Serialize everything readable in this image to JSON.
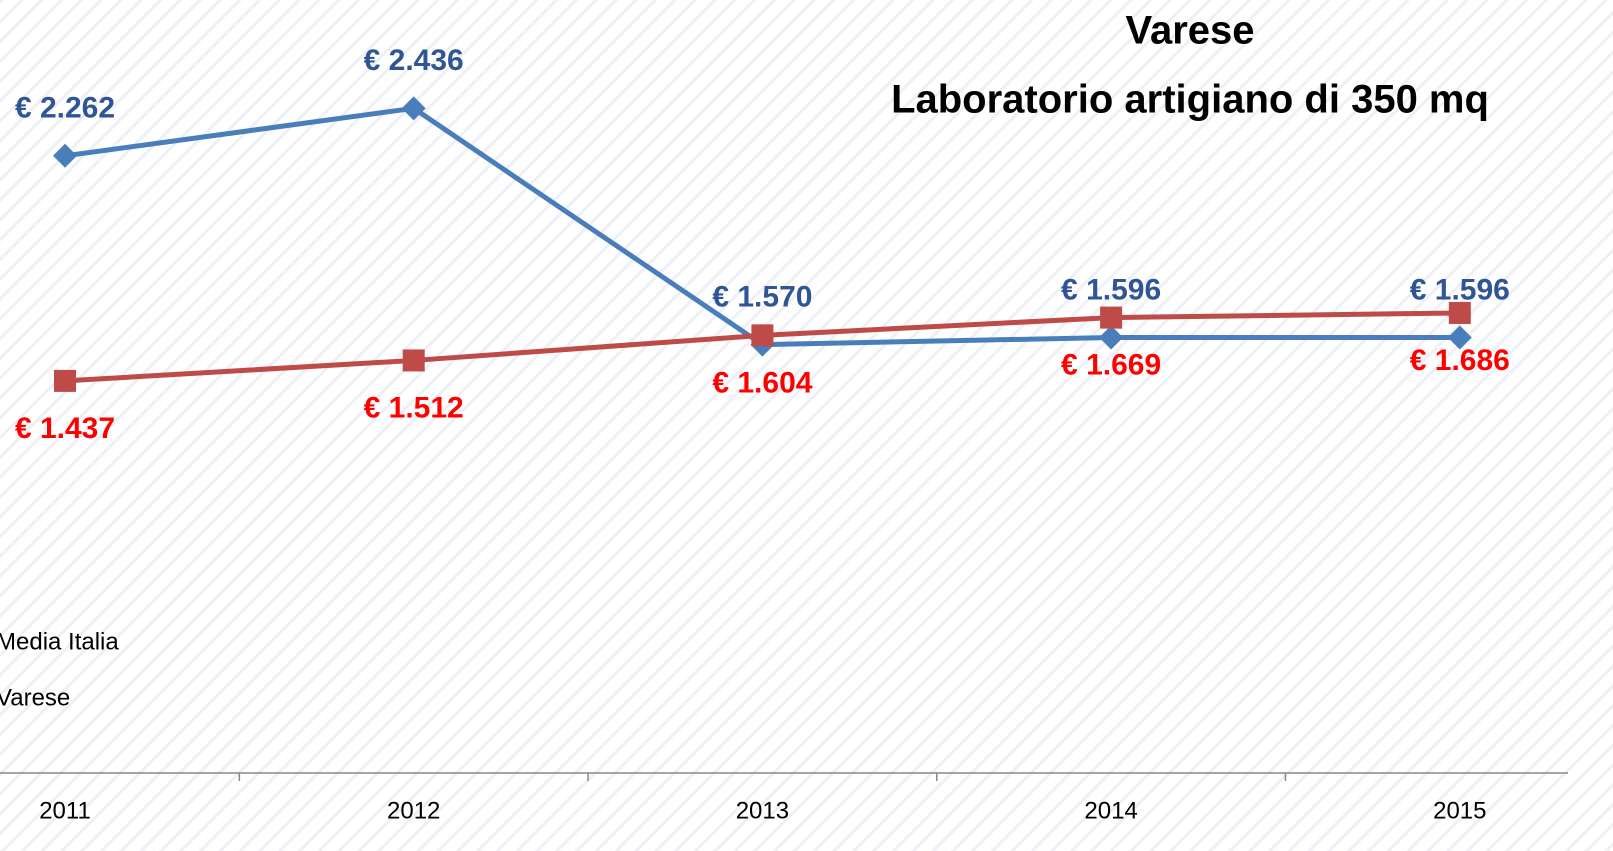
{
  "chart_data": {
    "type": "line",
    "title": "Varese",
    "subtitle": "Laboratorio artigiano di 350 mq",
    "categories": [
      "2011",
      "2012",
      "2013",
      "2014",
      "2015"
    ],
    "series": [
      {
        "name": "Media Italia",
        "color": "#4a7ebb",
        "label_color": "#2f5597",
        "marker": "diamond",
        "values": [
          2262,
          2436,
          1570,
          1596,
          1596
        ],
        "value_labels": [
          "€ 2.262",
          "€ 2.436",
          "€ 1.570",
          "€ 1.596",
          "€ 1.596"
        ]
      },
      {
        "name": "Varese",
        "color": "#be4b48",
        "label_color": "#ff0000",
        "marker": "square",
        "values": [
          1437,
          1512,
          1604,
          1669,
          1686
        ],
        "value_labels": [
          "€ 1.437",
          "€ 1.512",
          "€ 1.604",
          "€ 1.669",
          "€ 1.686"
        ]
      }
    ],
    "ylim": [
      0,
      2800
    ]
  }
}
